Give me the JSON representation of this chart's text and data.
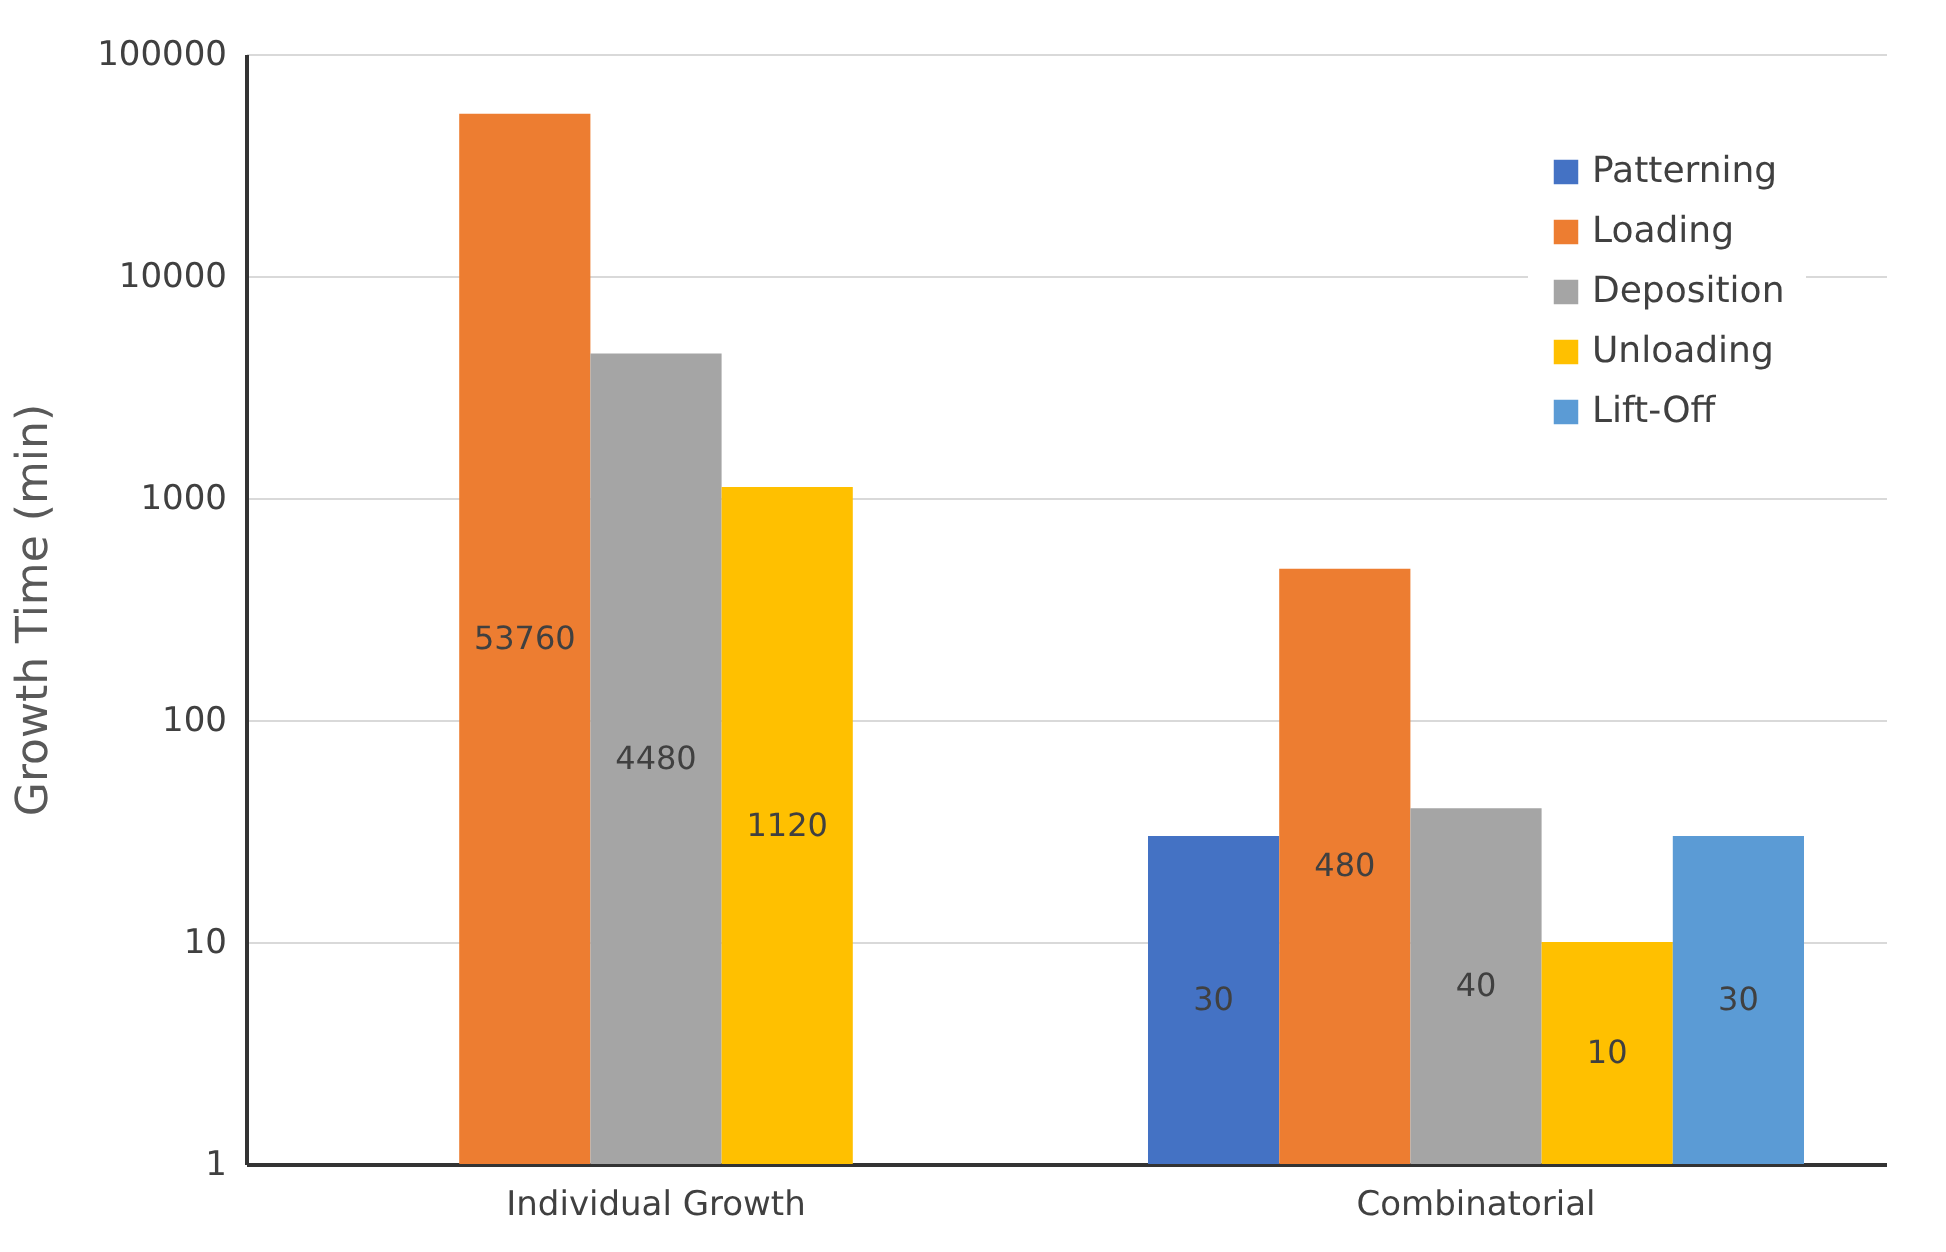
{
  "chart_data": {
    "type": "bar",
    "ylabel": "Growth Time (min)",
    "categories": [
      "Individual Growth",
      "Combinatorial"
    ],
    "series": [
      {
        "name": "Patterning",
        "color": "#4472c4",
        "values": [
          null,
          30
        ]
      },
      {
        "name": "Loading",
        "color": "#ed7d31",
        "values": [
          53760,
          480
        ]
      },
      {
        "name": "Deposition",
        "color": "#a5a5a5",
        "values": [
          4480,
          40
        ]
      },
      {
        "name": "Unloading",
        "color": "#ffc000",
        "values": [
          1120,
          10
        ]
      },
      {
        "name": "Lift-Off",
        "color": "#5b9bd5",
        "values": [
          null,
          30
        ]
      }
    ],
    "log": "y",
    "ylim": [
      1,
      100000
    ],
    "yticks": [
      1,
      10,
      100,
      1000,
      10000,
      100000
    ],
    "grid": "y",
    "legend": "top right",
    "data_labels": true
  }
}
